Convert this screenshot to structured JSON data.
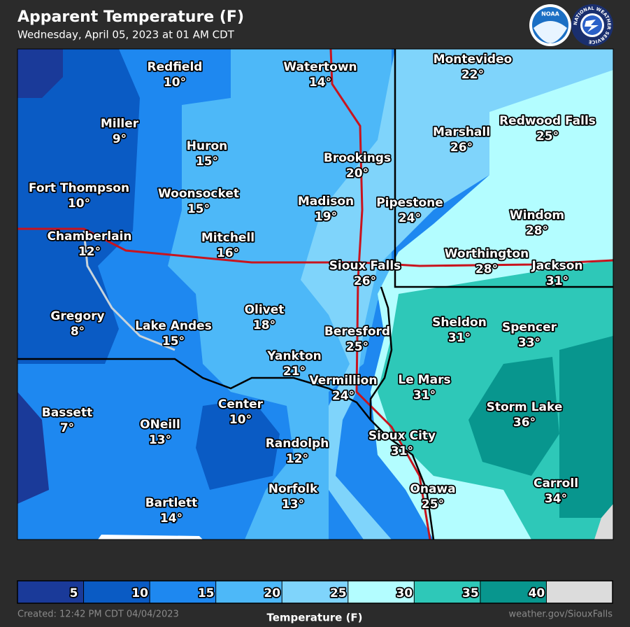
{
  "header": {
    "title": "Apparent Temperature (F)",
    "subtitle": "Wednesday, April 05, 2023 at 01 AM CDT"
  },
  "logos": {
    "noaa": "NOAA",
    "nws": "NATIONAL WEATHER SERVICE"
  },
  "cities": [
    {
      "name": "Redfield",
      "temp": "10°"
    },
    {
      "name": "Watertown",
      "temp": "14°"
    },
    {
      "name": "Montevideo",
      "temp": "22°"
    },
    {
      "name": "Miller",
      "temp": "9°"
    },
    {
      "name": "Huron",
      "temp": "15°"
    },
    {
      "name": "Brookings",
      "temp": "20°"
    },
    {
      "name": "Marshall",
      "temp": "26°"
    },
    {
      "name": "Redwood Falls",
      "temp": "25°"
    },
    {
      "name": "Fort Thompson",
      "temp": "10°"
    },
    {
      "name": "Woonsocket",
      "temp": "15°"
    },
    {
      "name": "Madison",
      "temp": "19°"
    },
    {
      "name": "Pipestone",
      "temp": "24°"
    },
    {
      "name": "Windom",
      "temp": "28°"
    },
    {
      "name": "Chamberlain",
      "temp": "12°"
    },
    {
      "name": "Mitchell",
      "temp": "16°"
    },
    {
      "name": "Worthington",
      "temp": "28°"
    },
    {
      "name": "Sioux Falls",
      "temp": "26°"
    },
    {
      "name": "Jackson",
      "temp": "31°"
    },
    {
      "name": "Gregory",
      "temp": "8°"
    },
    {
      "name": "Olivet",
      "temp": "18°"
    },
    {
      "name": "Lake Andes",
      "temp": "15°"
    },
    {
      "name": "Sheldon",
      "temp": "31°"
    },
    {
      "name": "Spencer",
      "temp": "33°"
    },
    {
      "name": "Beresford",
      "temp": "25°"
    },
    {
      "name": "Yankton",
      "temp": "21°"
    },
    {
      "name": "Vermillion",
      "temp": "24°"
    },
    {
      "name": "Le Mars",
      "temp": "31°"
    },
    {
      "name": "Center",
      "temp": "10°"
    },
    {
      "name": "Storm Lake",
      "temp": "36°"
    },
    {
      "name": "Bassett",
      "temp": "7°"
    },
    {
      "name": "ONeill",
      "temp": "13°"
    },
    {
      "name": "Sioux City",
      "temp": "31°"
    },
    {
      "name": "Randolph",
      "temp": "12°"
    },
    {
      "name": "Onawa",
      "temp": "25°"
    },
    {
      "name": "Carroll",
      "temp": "34°"
    },
    {
      "name": "Norfolk",
      "temp": "13°"
    },
    {
      "name": "Bartlett",
      "temp": "14°"
    }
  ],
  "legend": {
    "title": "Temperature (F)",
    "range": [
      0,
      45
    ],
    "ticks": [
      5,
      10,
      15,
      20,
      25,
      30,
      35,
      40
    ],
    "colors": [
      "#1a3a99",
      "#0a5bc4",
      "#1e88f0",
      "#4db8f8",
      "#7fd4fb",
      "#b3fdff",
      "#2ec8b8",
      "#08968e",
      "#dcdcdc"
    ]
  },
  "footer": {
    "created": "Created: 12:42 PM CDT 04/04/2023",
    "site": "weather.gov/SiouxFalls"
  }
}
